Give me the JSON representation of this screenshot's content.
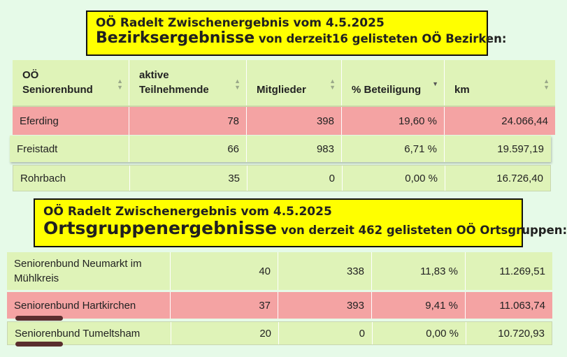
{
  "banner1": {
    "line1": "OÖ Radelt Zwischenergebnis vom 4.5.2025",
    "line2_big": "Bezirksergebnisse",
    "line2_rest": " von derzeit16 gelisteten OÖ Bezirken:"
  },
  "banner2": {
    "line1": "OÖ Radelt Zwischenergebnis vom 4.5.2025",
    "line2_big": "Ortsgruppenergebnisse",
    "line2_rest": " von derzeit 462 gelisteten OÖ Ortsgruppen:"
  },
  "table_header": {
    "col1_line1": "OÖ",
    "col1_line2": "Seniorenbund",
    "col2_line1": "aktive",
    "col2_line2": "Teilnehmende",
    "col3": "Mitglieder",
    "col4": "% Beteiligung",
    "col5": "km"
  },
  "bezirke": [
    {
      "name": "Eferding",
      "teilnehmende": "78",
      "mitglieder": "398",
      "beteiligung": "19,60 %",
      "km": "24.066,44"
    },
    {
      "name": "Freistadt",
      "teilnehmende": "66",
      "mitglieder": "983",
      "beteiligung": "6,71 %",
      "km": "19.597,19"
    },
    {
      "name": "Rohrbach",
      "teilnehmende": "35",
      "mitglieder": "0",
      "beteiligung": "0,00 %",
      "km": "16.726,40"
    }
  ],
  "ortsgruppen": [
    {
      "name_line1": "Seniorenbund Neumarkt im",
      "name_line2": "Mühlkreis",
      "teilnehmende": "40",
      "mitglieder": "338",
      "beteiligung": "11,83 %",
      "km": "11.269,51"
    },
    {
      "name": "Seniorenbund Hartkirchen",
      "teilnehmende": "37",
      "mitglieder": "393",
      "beteiligung": "9,41 %",
      "km": "11.063,74"
    },
    {
      "name": "Seniorenbund Tumeltsham",
      "teilnehmende": "20",
      "mitglieder": "0",
      "beteiligung": "0,00 %",
      "km": "10.720,93"
    }
  ],
  "colors": {
    "highlight_row": "#f4a3a3",
    "table_green": "#dff3b8",
    "banner_yellow": "#ffff00",
    "background": "#e6fae8"
  }
}
